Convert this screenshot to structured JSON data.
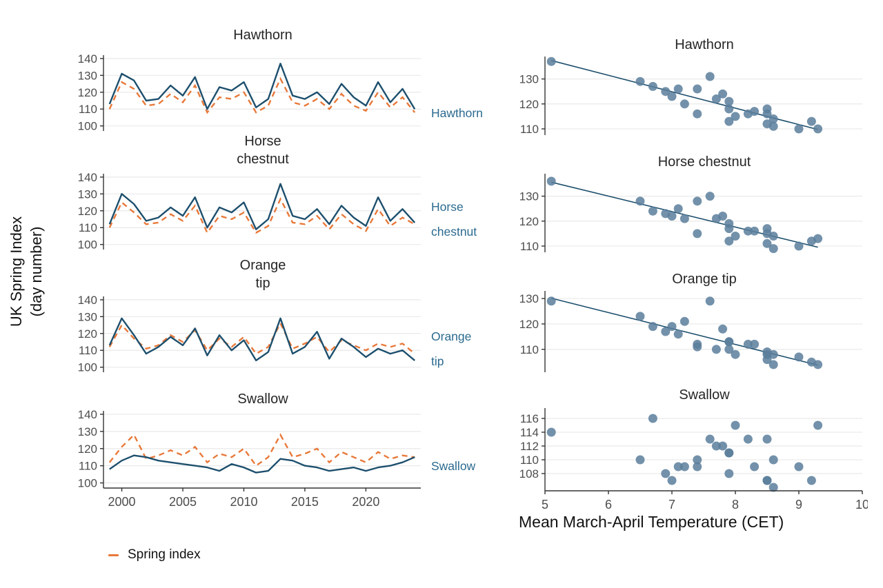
{
  "colors": {
    "observed": "#1d4f6d",
    "spring": "#e8793a",
    "point": "#5b7e9b",
    "grid": "#e9e9e9",
    "axis": "#333333",
    "tick_text": "#4d4d4d",
    "strip_text": "#2b6a8f"
  },
  "chart_data": {
    "type": "multi-panel",
    "subtypes": [
      "line",
      "scatter"
    ],
    "ylabel": "UK Spring Index\n(day number)",
    "xlabel_scatter": "Mean March-April Temperature (CET)",
    "legend": {
      "spring_index_label": "Spring index"
    },
    "years": [
      1999,
      2000,
      2001,
      2002,
      2003,
      2004,
      2005,
      2006,
      2007,
      2008,
      2009,
      2010,
      2011,
      2012,
      2013,
      2014,
      2015,
      2016,
      2017,
      2018,
      2019,
      2020,
      2021,
      2022,
      2023,
      2024
    ],
    "year_ticks": [
      2000,
      2005,
      2010,
      2015,
      2020
    ],
    "year_lim": [
      1998.5,
      2024.5
    ],
    "day_ticks": [
      100,
      110,
      120,
      130,
      140
    ],
    "day_lim": [
      97,
      142
    ],
    "temperature": [
      7.9,
      7.6,
      6.7,
      8.0,
      8.2,
      7.8,
      7.9,
      6.5,
      9.0,
      7.0,
      7.9,
      7.1,
      8.6,
      8.5,
      5.1,
      8.5,
      7.4,
      7.2,
      9.2,
      6.9,
      8.3,
      8.5,
      7.4,
      8.6,
      7.7,
      9.3
    ],
    "temp_ticks": [
      5,
      6,
      7,
      8,
      9,
      10
    ],
    "temp_lim": [
      5,
      10
    ],
    "panels": [
      {
        "species": "Hawthorn",
        "title_timeseries": "Hawthorn",
        "strip_label": "Hawthorn",
        "title_scatter": "Hawthorn",
        "observed": [
          113,
          131,
          127,
          115,
          116,
          124,
          118,
          129,
          110,
          123,
          121,
          126,
          111,
          116,
          137,
          118,
          116,
          120,
          113,
          125,
          117,
          112,
          126,
          114,
          122,
          110
        ],
        "spring_index": [
          110,
          126,
          122,
          112,
          113,
          119,
          114,
          124,
          108,
          117,
          116,
          120,
          108,
          112,
          128,
          114,
          112,
          116,
          110,
          119,
          112,
          109,
          120,
          111,
          117,
          108
        ],
        "scatter_yticks": [
          110,
          120,
          130
        ],
        "scatter_ylim": [
          107.5,
          139
        ],
        "trend": true
      },
      {
        "species": "Horse chestnut",
        "title_timeseries": "Horse\nchestnut",
        "strip_label": "Horse\nchestnut",
        "title_scatter": "Horse chestnut",
        "observed": [
          112,
          130,
          124,
          114,
          116,
          122,
          117,
          128,
          110,
          122,
          119,
          125,
          109,
          115,
          136,
          117,
          115,
          121,
          112,
          123,
          116,
          111,
          128,
          114,
          121,
          113
        ],
        "spring_index": [
          110,
          125,
          119,
          112,
          113,
          118,
          114,
          123,
          107,
          117,
          115,
          119,
          107,
          111,
          127,
          113,
          112,
          117,
          109,
          118,
          112,
          108,
          121,
          111,
          116,
          112
        ],
        "scatter_yticks": [
          110,
          120,
          130
        ],
        "scatter_ylim": [
          107.5,
          139
        ],
        "trend": true
      },
      {
        "species": "Orange tip",
        "title_timeseries": "Orange\ntip",
        "strip_label": "Orange\ntip",
        "title_scatter": "Orange tip",
        "observed": [
          113,
          129,
          119,
          108,
          112,
          118,
          113,
          123,
          107,
          119,
          110,
          116,
          104,
          109,
          129,
          108,
          112,
          121,
          105,
          117,
          112,
          106,
          111,
          108,
          110,
          104
        ],
        "spring_index": [
          112,
          125,
          117,
          111,
          113,
          119,
          115,
          122,
          110,
          117,
          112,
          118,
          108,
          112,
          126,
          111,
          114,
          118,
          109,
          116,
          113,
          110,
          114,
          112,
          114,
          108
        ],
        "scatter_yticks": [
          110,
          120,
          130
        ],
        "scatter_ylim": [
          101,
          133
        ],
        "trend": true
      },
      {
        "species": "Swallow",
        "title_timeseries": "Swallow",
        "strip_label": "Swallow",
        "title_scatter": "Swallow",
        "observed": [
          108,
          113,
          116,
          115,
          113,
          112,
          111,
          110,
          109,
          107,
          111,
          109,
          106,
          107,
          114,
          113,
          110,
          109,
          107,
          108,
          109,
          107,
          109,
          110,
          112,
          115
        ],
        "spring_index": [
          112,
          121,
          128,
          114,
          116,
          119,
          116,
          121,
          112,
          117,
          115,
          120,
          110,
          115,
          128,
          115,
          117,
          120,
          112,
          118,
          115,
          112,
          118,
          114,
          116,
          115
        ],
        "scatter_yticks": [
          108,
          110,
          112,
          114,
          116
        ],
        "scatter_ylim": [
          105.5,
          117.5
        ],
        "trend": false
      }
    ]
  }
}
